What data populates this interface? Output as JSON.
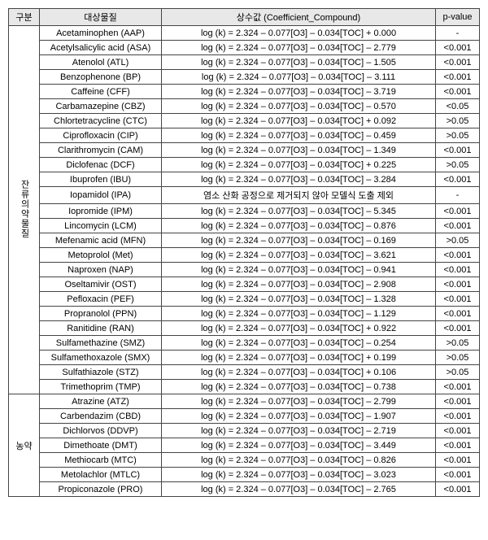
{
  "headers": {
    "category": "구분",
    "compound": "대상물질",
    "equation": "상수값 (Coefficient_Compound)",
    "pvalue": "p-value"
  },
  "groups": [
    {
      "name": "잔류\n의약\n물질",
      "rows": [
        {
          "compound": "Acetaminophen (AAP)",
          "eq": "log (k) = 2.324 – 0.077[O3] – 0.034[TOC] + 0.000",
          "p": "-"
        },
        {
          "compound": "Acetylsalicylic acid (ASA)",
          "eq": "log (k) = 2.324 – 0.077[O3] – 0.034[TOC] – 2.779",
          "p": "<0.001"
        },
        {
          "compound": "Atenolol (ATL)",
          "eq": "log (k) = 2.324 – 0.077[O3] – 0.034[TOC] – 1.505",
          "p": "<0.001"
        },
        {
          "compound": "Benzophenone (BP)",
          "eq": "log (k) = 2.324 – 0.077[O3] – 0.034[TOC] – 3.111",
          "p": "<0.001"
        },
        {
          "compound": "Caffeine (CFF)",
          "eq": "log (k) = 2.324 – 0.077[O3] – 0.034[TOC] – 3.719",
          "p": "<0.001"
        },
        {
          "compound": "Carbamazepine (CBZ)",
          "eq": "log (k) = 2.324 – 0.077[O3] – 0.034[TOC] – 0.570",
          "p": "<0.05"
        },
        {
          "compound": "Chlortetracycline (CTC)",
          "eq": "log (k) = 2.324 – 0.077[O3] – 0.034[TOC] + 0.092",
          "p": ">0.05"
        },
        {
          "compound": "Ciprofloxacin (CIP)",
          "eq": "log (k) = 2.324 – 0.077[O3] – 0.034[TOC] – 0.459",
          "p": ">0.05"
        },
        {
          "compound": "Clarithromycin (CAM)",
          "eq": "log (k) = 2.324 – 0.077[O3] – 0.034[TOC] – 1.349",
          "p": "<0.001"
        },
        {
          "compound": "Diclofenac (DCF)",
          "eq": "log (k) = 2.324 – 0.077[O3] – 0.034[TOC] + 0.225",
          "p": ">0.05"
        },
        {
          "compound": "Ibuprofen (IBU)",
          "eq": "log (k) = 2.324 – 0.077[O3] – 0.034[TOC] – 3.284",
          "p": "<0.001"
        },
        {
          "compound": "Iopamidol (IPA)",
          "eq": "염소 산화 공정으로 제거되지 않아 모델식 도출 제외",
          "p": "-"
        },
        {
          "compound": "Iopromide (IPM)",
          "eq": "log (k) = 2.324 – 0.077[O3] – 0.034[TOC] – 5.345",
          "p": "<0.001"
        },
        {
          "compound": "Lincomycin (LCM)",
          "eq": "log (k) = 2.324 – 0.077[O3] – 0.034[TOC] – 0.876",
          "p": "<0.001"
        },
        {
          "compound": "Mefenamic acid (MFN)",
          "eq": "log (k) = 2.324 – 0.077[O3] – 0.034[TOC] – 0.169",
          "p": ">0.05"
        },
        {
          "compound": "Metoprolol (Met)",
          "eq": "log (k) = 2.324 – 0.077[O3] – 0.034[TOC] – 3.621",
          "p": "<0.001"
        },
        {
          "compound": "Naproxen (NAP)",
          "eq": "log (k) = 2.324 – 0.077[O3] – 0.034[TOC] – 0.941",
          "p": "<0.001"
        },
        {
          "compound": "Oseltamivir (OST)",
          "eq": "log (k) = 2.324 – 0.077[O3] – 0.034[TOC] – 2.908",
          "p": "<0.001"
        },
        {
          "compound": "Pefloxacin (PEF)",
          "eq": "log (k) = 2.324 – 0.077[O3] – 0.034[TOC] – 1.328",
          "p": "<0.001"
        },
        {
          "compound": "Propranolol (PPN)",
          "eq": "log (k) = 2.324 – 0.077[O3] – 0.034[TOC] – 1.129",
          "p": "<0.001"
        },
        {
          "compound": "Ranitidine (RAN)",
          "eq": "log (k) = 2.324 – 0.077[O3] – 0.034[TOC] + 0.922",
          "p": "<0.001"
        },
        {
          "compound": "Sulfamethazine (SMZ)",
          "eq": "log (k) = 2.324 – 0.077[O3] – 0.034[TOC] – 0.254",
          "p": ">0.05"
        },
        {
          "compound": "Sulfamethoxazole (SMX)",
          "eq": "log (k) = 2.324 – 0.077[O3] – 0.034[TOC] + 0.199",
          "p": ">0.05"
        },
        {
          "compound": "Sulfathiazole (STZ)",
          "eq": "log (k) = 2.324 – 0.077[O3] – 0.034[TOC] + 0.106",
          "p": ">0.05"
        },
        {
          "compound": "Trimethoprim (TMP)",
          "eq": "log (k) = 2.324 – 0.077[O3] – 0.034[TOC] – 0.738",
          "p": "<0.001"
        }
      ]
    },
    {
      "name": "농약",
      "rows": [
        {
          "compound": "Atrazine (ATZ)",
          "eq": "log (k) = 2.324 – 0.077[O3] – 0.034[TOC] – 2.799",
          "p": "<0.001"
        },
        {
          "compound": "Carbendazim (CBD)",
          "eq": "log (k) = 2.324 – 0.077[O3] – 0.034[TOC] – 1.907",
          "p": "<0.001"
        },
        {
          "compound": "Dichlorvos (DDVP)",
          "eq": "log (k) = 2.324 – 0.077[O3] – 0.034[TOC] – 2.719",
          "p": "<0.001"
        },
        {
          "compound": "Dimethoate (DMT)",
          "eq": "log (k) = 2.324 – 0.077[O3] – 0.034[TOC] – 3.449",
          "p": "<0.001"
        },
        {
          "compound": "Methiocarb (MTC)",
          "eq": "log (k) = 2.324 – 0.077[O3] – 0.034[TOC] – 0.826",
          "p": "<0.001"
        },
        {
          "compound": "Metolachlor (MTLC)",
          "eq": "log (k) = 2.324 – 0.077[O3] – 0.034[TOC] – 3.023",
          "p": "<0.001"
        },
        {
          "compound": "Propiconazole (PRO)",
          "eq": "log (k) = 2.324 – 0.077[O3] – 0.034[TOC] – 2.765",
          "p": "<0.001"
        }
      ]
    }
  ]
}
